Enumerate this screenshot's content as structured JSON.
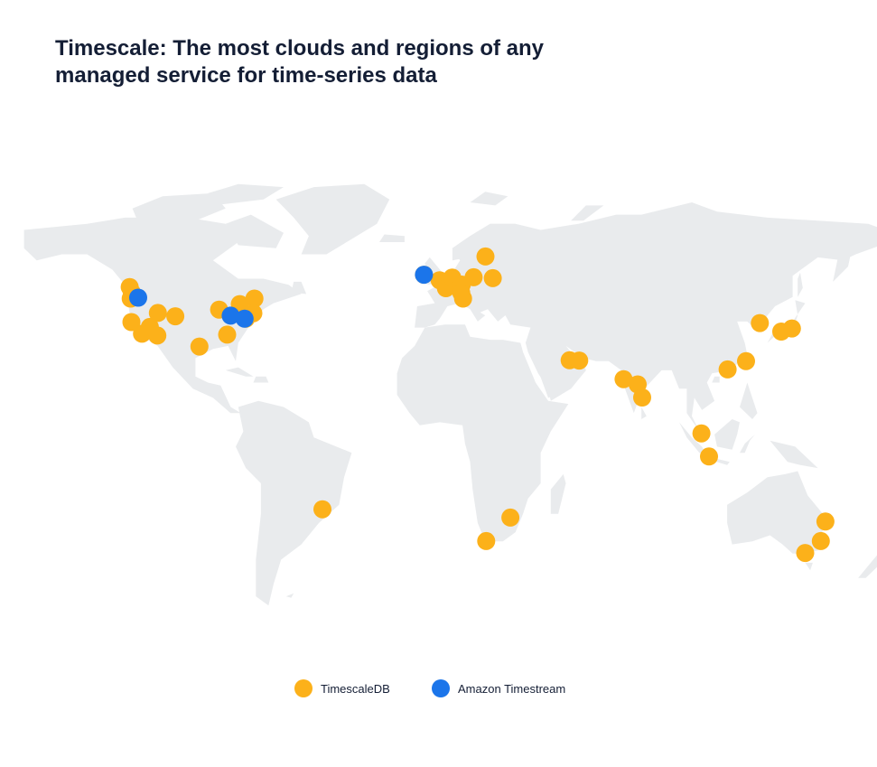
{
  "title": {
    "line1": "Timescale: The most clouds and regions of any",
    "line2": "managed service for time-series data"
  },
  "colors": {
    "land": "#e9ebed",
    "timescale": "#fcb11a",
    "timestream": "#1b75ea",
    "text": "#141e35"
  },
  "legend": [
    {
      "label": "TimescaleDB",
      "color": "#fcb11a"
    },
    {
      "label": "Amazon Timestream",
      "color": "#1b75ea"
    }
  ],
  "markers": [
    {
      "service": "TimescaleDB",
      "lat": 47.6,
      "lon": -122.3
    },
    {
      "service": "TimescaleDB",
      "lat": 49.3,
      "lon": -123.1
    },
    {
      "service": "TimescaleDB",
      "lat": 45.5,
      "lon": -122.7
    },
    {
      "service": "TimescaleDB",
      "lat": 37.8,
      "lon": -122.4
    },
    {
      "service": "TimescaleDB",
      "lat": 36.2,
      "lon": -115.1
    },
    {
      "service": "TimescaleDB",
      "lat": 34.0,
      "lon": -118.2
    },
    {
      "service": "TimescaleDB",
      "lat": 33.4,
      "lon": -112.1
    },
    {
      "service": "TimescaleDB",
      "lat": 40.8,
      "lon": -111.9
    },
    {
      "service": "TimescaleDB",
      "lat": 39.7,
      "lon": -105.0
    },
    {
      "service": "TimescaleDB",
      "lat": 29.8,
      "lon": -95.4
    },
    {
      "service": "TimescaleDB",
      "lat": 41.9,
      "lon": -87.6
    },
    {
      "service": "TimescaleDB",
      "lat": 43.7,
      "lon": -79.4
    },
    {
      "service": "TimescaleDB",
      "lat": 45.5,
      "lon": -73.6
    },
    {
      "service": "TimescaleDB",
      "lat": 40.7,
      "lon": -74.0
    },
    {
      "service": "TimescaleDB",
      "lat": 38.9,
      "lon": -77.0
    },
    {
      "service": "TimescaleDB",
      "lat": 33.7,
      "lon": -84.4
    },
    {
      "service": "TimescaleDB",
      "lat": -23.5,
      "lon": -46.6
    },
    {
      "service": "TimescaleDB",
      "lat": 53.3,
      "lon": -6.3
    },
    {
      "service": "TimescaleDB",
      "lat": 51.5,
      "lon": -0.1
    },
    {
      "service": "TimescaleDB",
      "lat": 48.9,
      "lon": 2.4
    },
    {
      "service": "TimescaleDB",
      "lat": 52.4,
      "lon": 4.9
    },
    {
      "service": "TimescaleDB",
      "lat": 50.1,
      "lon": 8.7
    },
    {
      "service": "TimescaleDB",
      "lat": 47.4,
      "lon": 8.5
    },
    {
      "service": "TimescaleDB",
      "lat": 45.5,
      "lon": 9.2
    },
    {
      "service": "TimescaleDB",
      "lat": 52.5,
      "lon": 13.4
    },
    {
      "service": "TimescaleDB",
      "lat": 59.3,
      "lon": 18.1
    },
    {
      "service": "TimescaleDB",
      "lat": 52.2,
      "lon": 21.0
    },
    {
      "service": "TimescaleDB",
      "lat": 25.3,
      "lon": 51.5
    },
    {
      "service": "TimescaleDB",
      "lat": 25.2,
      "lon": 55.3
    },
    {
      "service": "TimescaleDB",
      "lat": 19.1,
      "lon": 72.9
    },
    {
      "service": "TimescaleDB",
      "lat": 17.4,
      "lon": 78.5
    },
    {
      "service": "TimescaleDB",
      "lat": 13.1,
      "lon": 80.3
    },
    {
      "service": "TimescaleDB",
      "lat": 1.35,
      "lon": 103.8
    },
    {
      "service": "TimescaleDB",
      "lat": -6.2,
      "lon": 106.8
    },
    {
      "service": "TimescaleDB",
      "lat": 22.3,
      "lon": 114.2
    },
    {
      "service": "TimescaleDB",
      "lat": 25.0,
      "lon": 121.5
    },
    {
      "service": "TimescaleDB",
      "lat": 37.5,
      "lon": 127.0
    },
    {
      "service": "TimescaleDB",
      "lat": 34.7,
      "lon": 135.5
    },
    {
      "service": "TimescaleDB",
      "lat": 35.7,
      "lon": 139.7
    },
    {
      "service": "TimescaleDB",
      "lat": -33.9,
      "lon": 18.4
    },
    {
      "service": "TimescaleDB",
      "lat": -26.2,
      "lon": 28.0
    },
    {
      "service": "TimescaleDB",
      "lat": -27.5,
      "lon": 153.0
    },
    {
      "service": "TimescaleDB",
      "lat": -33.9,
      "lon": 151.2
    },
    {
      "service": "TimescaleDB",
      "lat": -37.8,
      "lon": 145.0
    },
    {
      "service": "Amazon Timestream",
      "lat": 45.8,
      "lon": -119.7
    },
    {
      "service": "Amazon Timestream",
      "lat": 39.9,
      "lon": -83.0
    },
    {
      "service": "Amazon Timestream",
      "lat": 38.9,
      "lon": -77.5
    },
    {
      "service": "Amazon Timestream",
      "lat": 53.3,
      "lon": -6.3
    }
  ]
}
